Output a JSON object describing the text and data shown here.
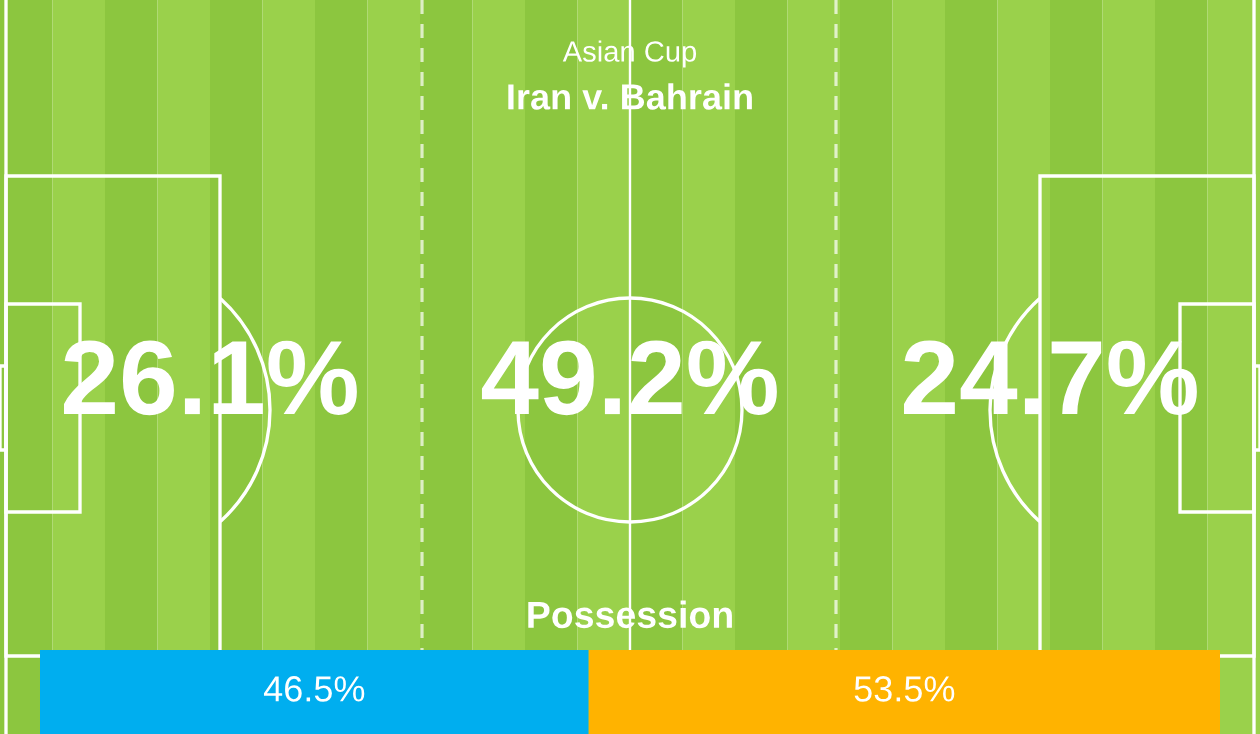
{
  "chart_data": [
    {
      "type": "other",
      "title": "Asian Cup",
      "subtitle": "Iran v. Bahrain",
      "annotations": [
        "26.1%",
        "49.2%",
        "24.7%"
      ]
    },
    {
      "type": "bar",
      "orientation": "horizontal",
      "stacked": true,
      "title": "Possession",
      "categories": [
        null
      ],
      "xlim": [
        0,
        100
      ],
      "tick_labels": false,
      "series": [
        {
          "color": "#00aeef",
          "values": [
            46.5
          ],
          "value_labels": [
            "46.5%"
          ]
        },
        {
          "color": "#ffb300",
          "values": [
            53.5
          ],
          "value_labels": [
            "53.5%"
          ]
        }
      ]
    }
  ]
}
